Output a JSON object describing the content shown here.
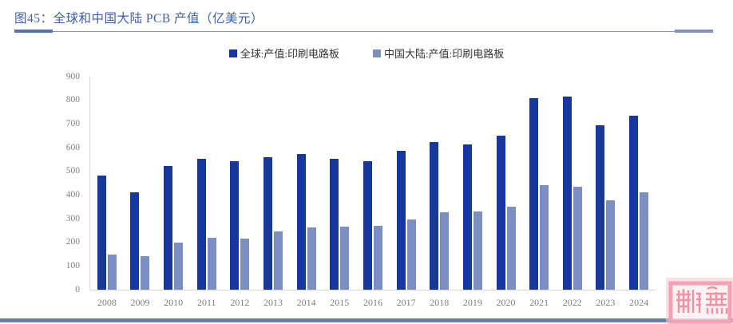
{
  "header": {
    "title": "图45：全球和中国大陆 PCB 产值（亿美元）"
  },
  "chart_data": {
    "type": "bar",
    "title": "图45：全球和中国大陆 PCB 产值（亿美元）",
    "unit": "亿美元",
    "categories": [
      "2008",
      "2009",
      "2010",
      "2011",
      "2012",
      "2013",
      "2014",
      "2015",
      "2016",
      "2017",
      "2018",
      "2019",
      "2020",
      "2021",
      "2022",
      "2023",
      "2024"
    ],
    "series": [
      {
        "name": "全球:产值:印刷电路板",
        "key": "global",
        "color": "#16379d",
        "values": [
          481,
          412,
          524,
          554,
          543,
          561,
          574,
          553,
          542,
          588,
          624,
          613,
          652,
          809,
          817,
          695,
          735
        ]
      },
      {
        "name": "中国大陆:产值:印刷电路板",
        "key": "china-mainland",
        "color": "#7b8fc3",
        "values": [
          150,
          142,
          200,
          220,
          216,
          246,
          262,
          267,
          271,
          297,
          328,
          329,
          350,
          442,
          436,
          378,
          412
        ]
      }
    ],
    "ylim": [
      0,
      900
    ],
    "ytick_step": 100,
    "grid": false,
    "legend_position": "top-center"
  },
  "theme": {
    "title_color": "#3f5fac",
    "axis_line_color": "#d9d9d9",
    "tick_label_color": "#7f7f7f",
    "legend_text_color": "#333333",
    "bottom_strip_color": "#6680b2",
    "watermark_color": "#ef92a4"
  },
  "watermark": {
    "type": "pink-seal-stamp"
  }
}
